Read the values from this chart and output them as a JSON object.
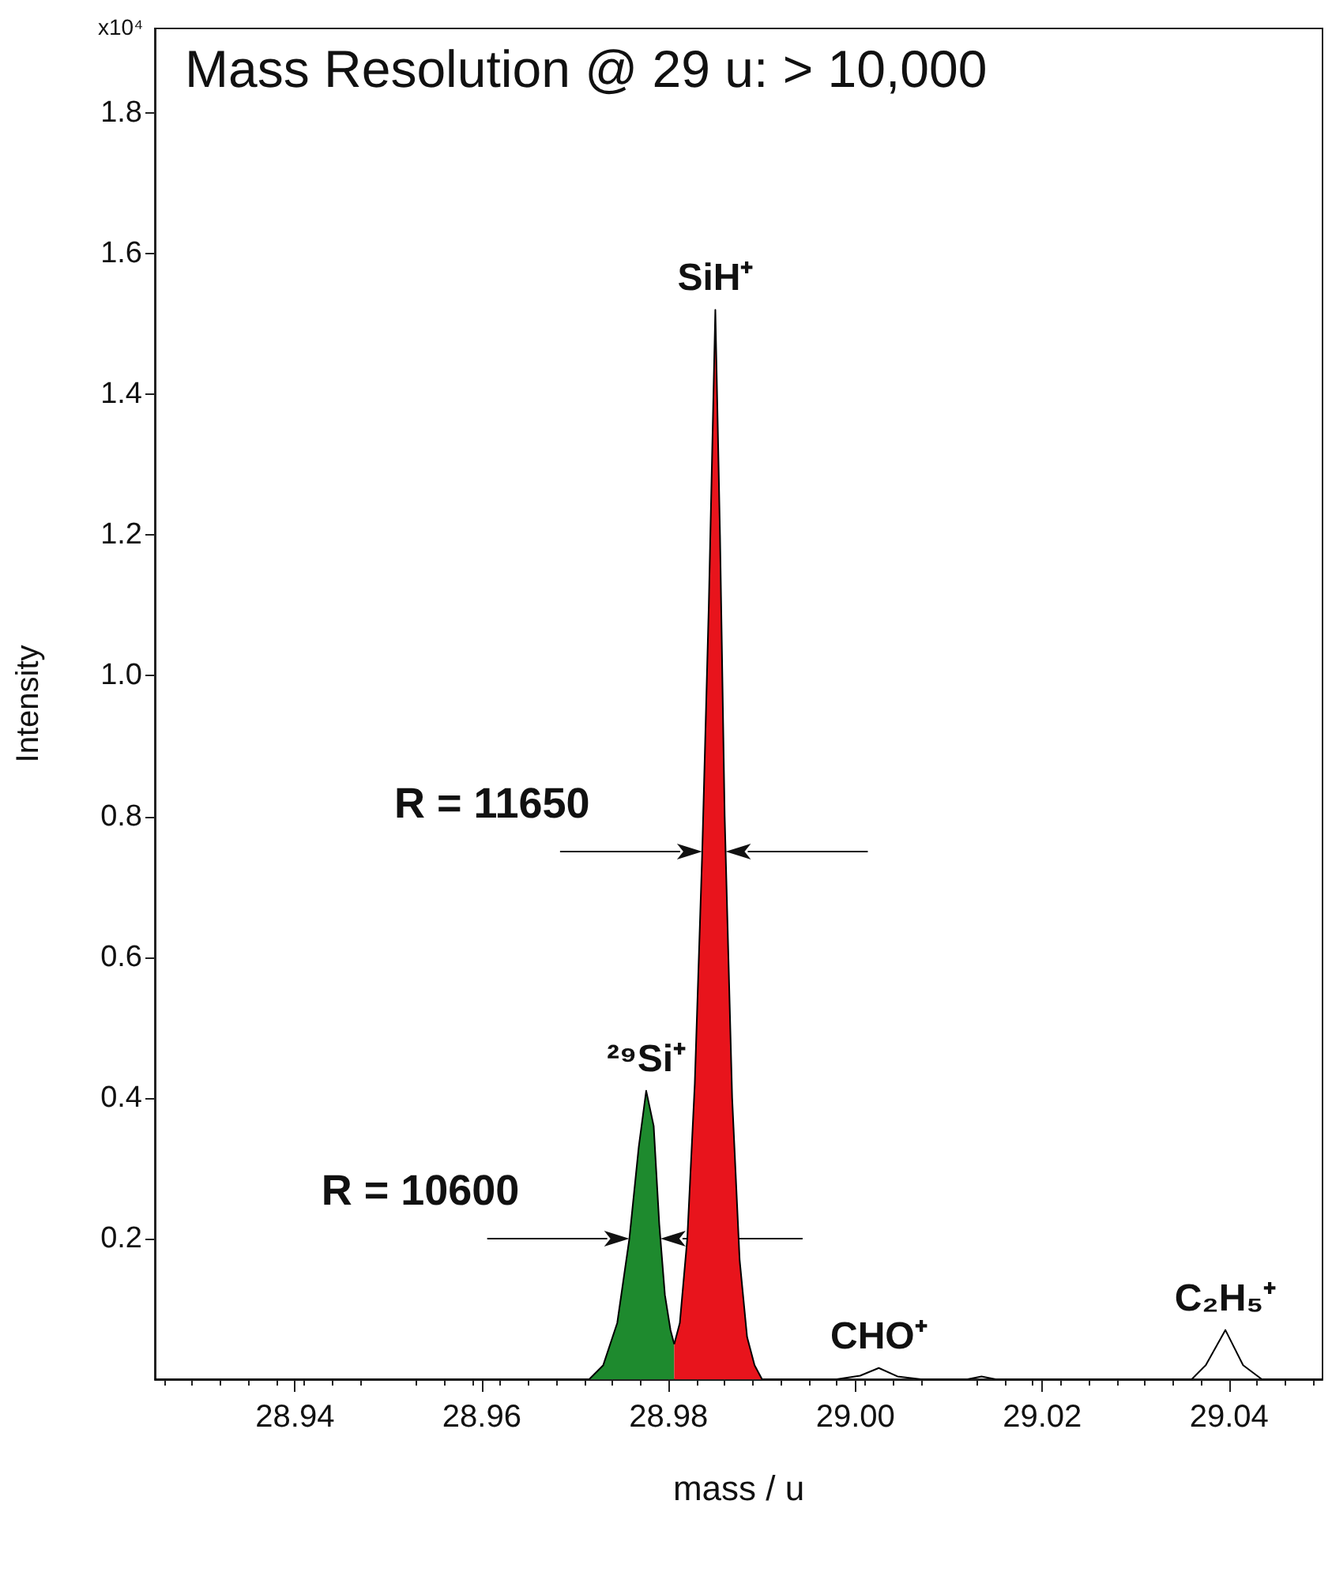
{
  "chart_data": {
    "type": "area",
    "title": "Mass Resolution @ 29 u: > 10,000",
    "xlabel": "mass / u",
    "ylabel": "Intensity",
    "annotations": [
      "x10⁴",
      {
        "text": "SiH⁺",
        "x": 28.985,
        "y": 1.52
      },
      {
        "text": "²⁹Si⁺",
        "x": 28.9776,
        "y": 0.41
      },
      {
        "text": "CHO⁺",
        "x": 29.0025,
        "y": 0.016
      },
      {
        "text": "C₂H₅⁺",
        "x": 29.0396,
        "y": 0.07
      },
      {
        "text": "R = 11650",
        "x": 28.9836,
        "y": 0.75
      },
      {
        "text": "R = 10600",
        "x": 28.9758,
        "y": 0.2
      }
    ],
    "series": [
      {
        "color": "#1e8a2e",
        "x": [
          28.9715,
          28.973,
          28.9745,
          28.9758,
          28.9768,
          28.9776,
          28.9784,
          28.979,
          28.9796,
          28.9802,
          28.9806
        ],
        "values": [
          0,
          0.02,
          0.08,
          0.2,
          0.33,
          0.41,
          0.36,
          0.22,
          0.12,
          0.07,
          0.05
        ]
      },
      {
        "color": "#e8141c",
        "x": [
          28.9806,
          28.9812,
          28.982,
          28.9828,
          28.9836,
          28.9843,
          28.985,
          28.9855,
          28.986,
          28.9868,
          28.9876,
          28.9884,
          28.9892,
          28.99
        ],
        "values": [
          0.05,
          0.08,
          0.2,
          0.42,
          0.75,
          1.1,
          1.52,
          1.2,
          0.8,
          0.4,
          0.17,
          0.06,
          0.02,
          0
        ]
      },
      {
        "type": "line",
        "color": "#000000",
        "x": [
          28.925,
          28.9715,
          null,
          28.99,
          28.998,
          29.0005,
          29.0025,
          29.0045,
          29.007,
          29.012,
          29.0135,
          29.015,
          29.036,
          29.0375,
          29.0396,
          29.0415,
          29.0435,
          29.05
        ],
        "values": [
          0,
          0,
          null,
          0,
          0,
          0.005,
          0.016,
          0.004,
          0,
          0,
          0.004,
          0,
          0,
          0.02,
          0.07,
          0.02,
          0,
          0
        ]
      }
    ],
    "xlim": [
      28.925,
      29.05
    ],
    "xticks": [
      28.94,
      28.96,
      28.98,
      {
        "value": 29,
        "label": "29.00"
      },
      29.02,
      29.04
    ],
    "ylim": [
      0,
      1.92
    ],
    "yticks": [
      0.2,
      0.4,
      0.6,
      0.8,
      {
        "value": 1,
        "label": "1.0"
      },
      1.2,
      1.4,
      1.6,
      1.8
    ],
    "marker": "none"
  }
}
